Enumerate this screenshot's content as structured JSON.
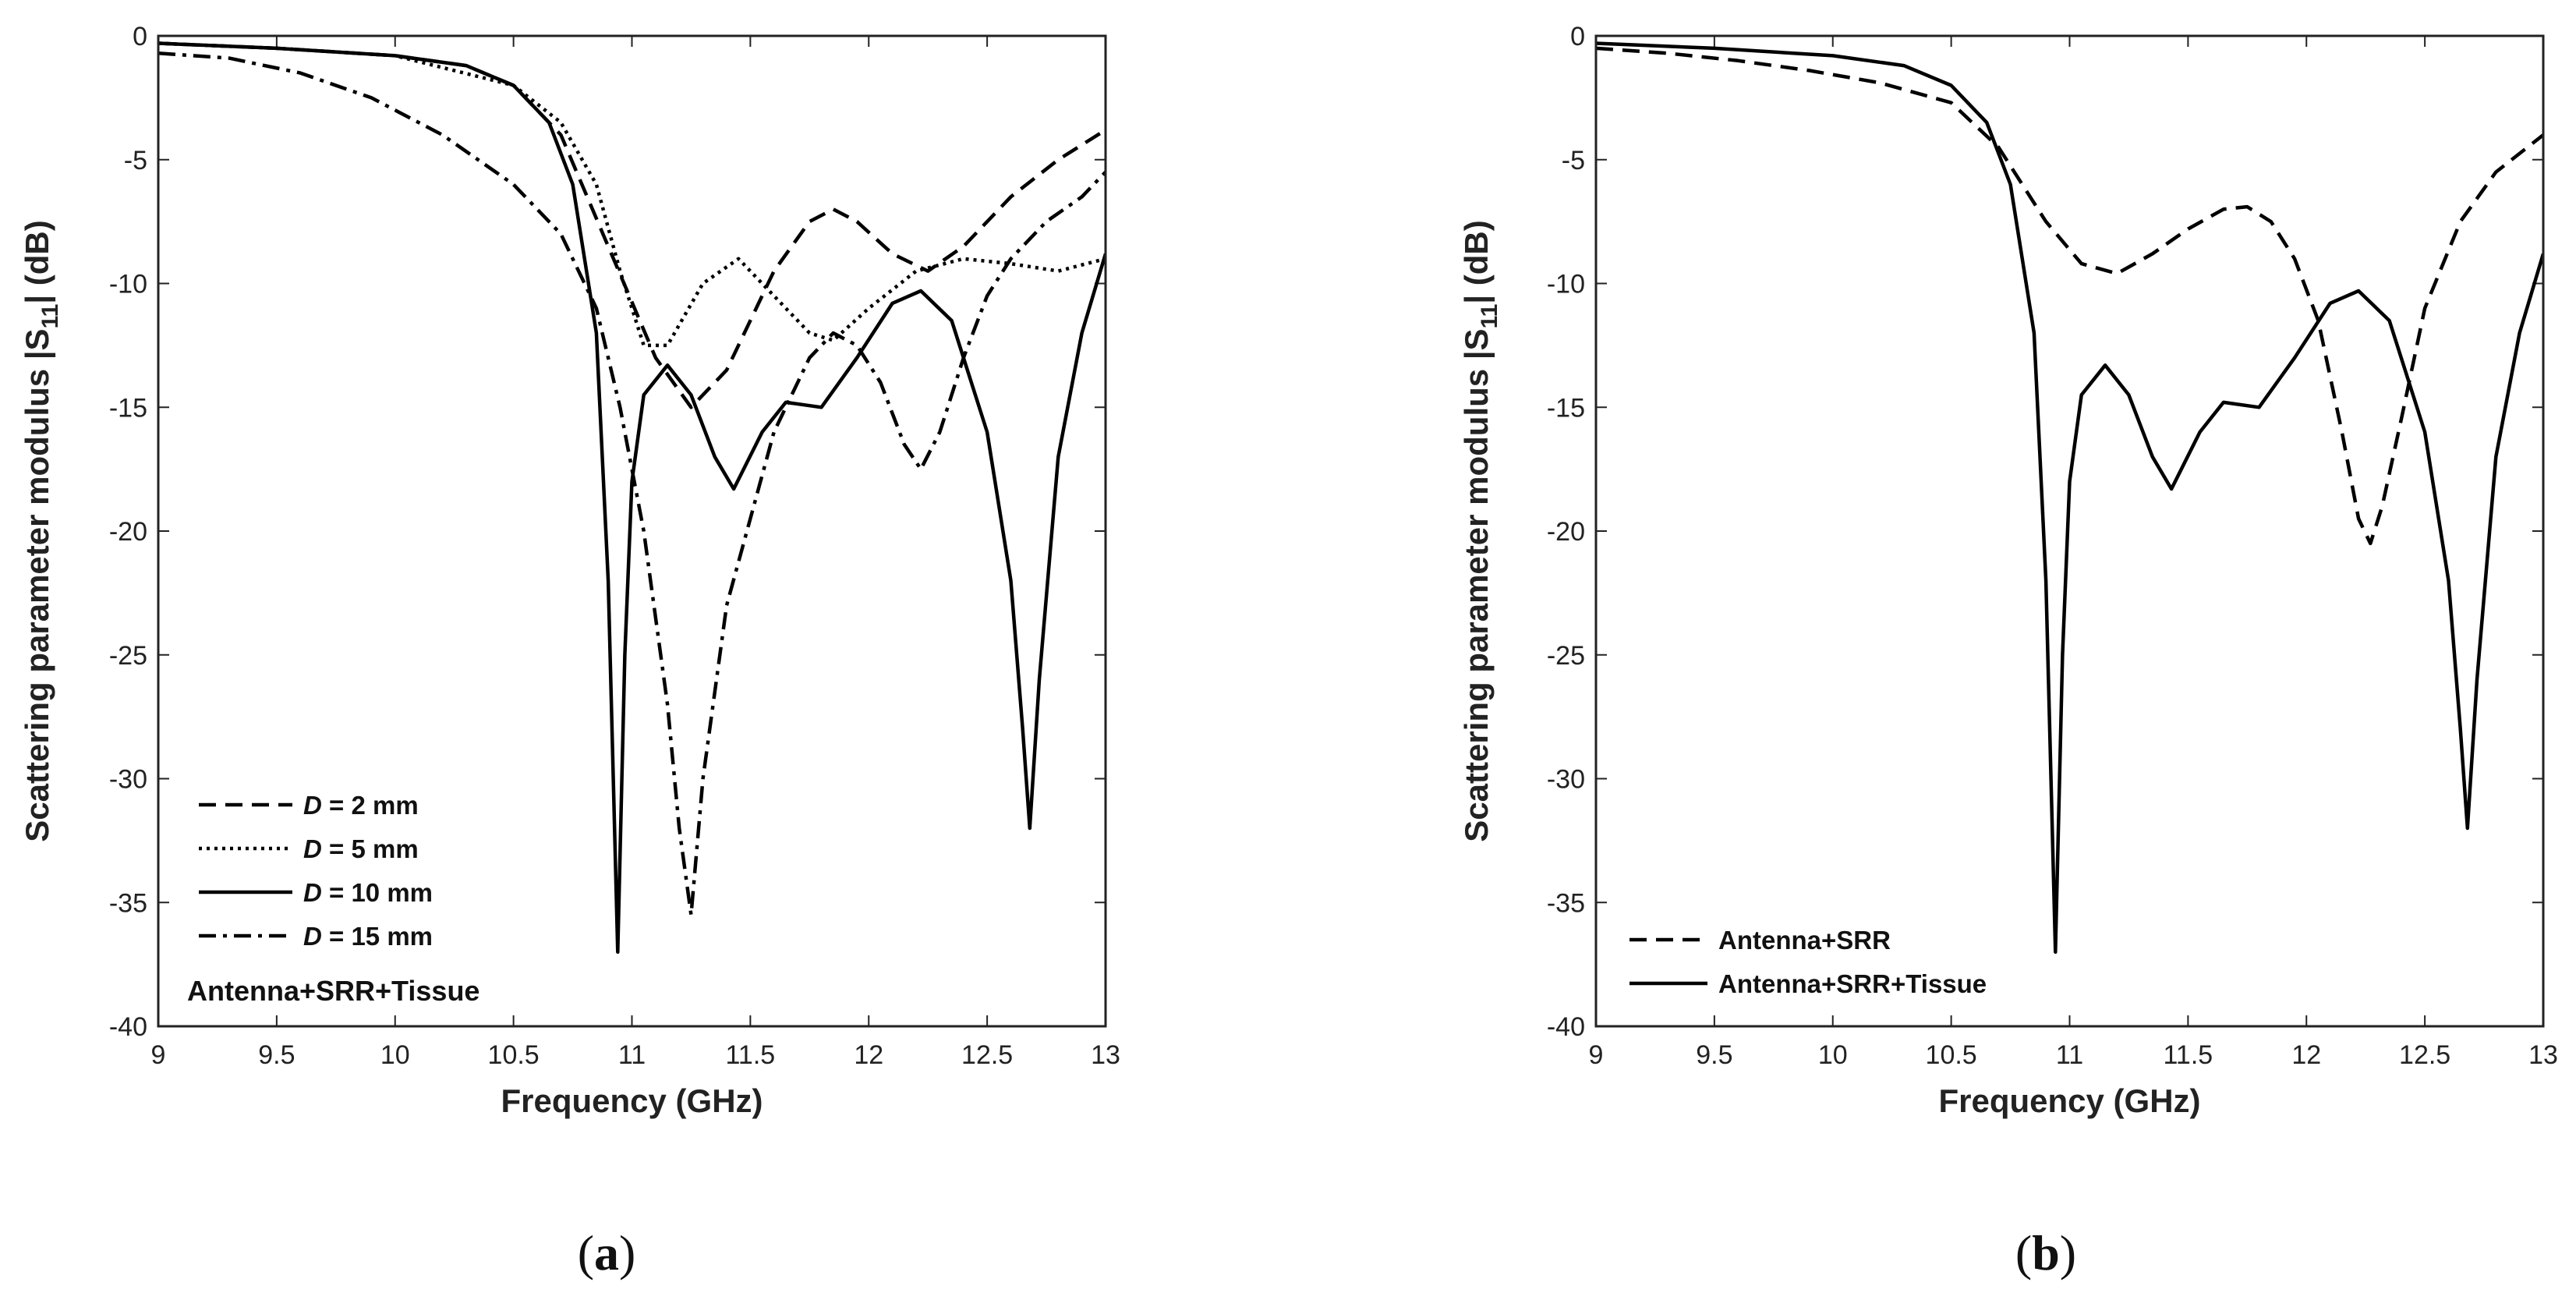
{
  "chart_data": [
    {
      "type": "line",
      "panel_label": "a",
      "xlabel": "Frequency (GHz)",
      "ylabel": {
        "prefix": "Scattering parameter modulus |S",
        "sub": "11",
        "suffix": "| (dB)"
      },
      "xlim": [
        9,
        13
      ],
      "ylim": [
        -40,
        0
      ],
      "xticks": [
        "9",
        "9.5",
        "10",
        "10.5",
        "11",
        "11.5",
        "12",
        "12.5",
        "13"
      ],
      "yticks": [
        "0",
        "-5",
        "-10",
        "-15",
        "-20",
        "-25",
        "-30",
        "-35",
        "-40"
      ],
      "annotation": "Antenna+SRR+Tissue",
      "series": [
        {
          "name": "D = 2 mm",
          "label_var": "D",
          "label_rest": " = 2 mm",
          "style": "dashed",
          "x": [
            9.0,
            9.5,
            10.0,
            10.3,
            10.5,
            10.7,
            10.9,
            11.1,
            11.25,
            11.4,
            11.6,
            11.75,
            11.85,
            11.95,
            12.1,
            12.25,
            12.4,
            12.6,
            12.8,
            13.0
          ],
          "y": [
            -0.3,
            -0.5,
            -0.8,
            -1.2,
            -2.0,
            -4.0,
            -8.5,
            -13.0,
            -15.0,
            -13.5,
            -9.5,
            -7.5,
            -7.0,
            -7.5,
            -8.8,
            -9.5,
            -8.5,
            -6.5,
            -5.0,
            -3.8
          ]
        },
        {
          "name": "D = 5 mm",
          "label_var": "D",
          "label_rest": " = 5 mm",
          "style": "dotted",
          "x": [
            9.0,
            9.5,
            10.0,
            10.5,
            10.7,
            10.85,
            10.95,
            11.05,
            11.15,
            11.3,
            11.45,
            11.6,
            11.75,
            11.85,
            12.0,
            12.2,
            12.4,
            12.6,
            12.8,
            13.0
          ],
          "y": [
            -0.3,
            -0.5,
            -0.8,
            -2.0,
            -3.5,
            -6.0,
            -9.5,
            -12.5,
            -12.5,
            -10.0,
            -9.0,
            -10.5,
            -12.0,
            -12.3,
            -11.0,
            -9.5,
            -9.0,
            -9.2,
            -9.5,
            -9.0
          ]
        },
        {
          "name": "D = 10 mm",
          "label_var": "D",
          "label_rest": " = 10 mm",
          "style": "solid",
          "x": [
            9.0,
            9.5,
            10.0,
            10.3,
            10.5,
            10.65,
            10.75,
            10.85,
            10.9,
            10.94,
            10.97,
            11.0,
            11.05,
            11.15,
            11.25,
            11.35,
            11.43,
            11.55,
            11.65,
            11.8,
            11.95,
            12.1,
            12.22,
            12.35,
            12.5,
            12.6,
            12.65,
            12.68,
            12.72,
            12.8,
            12.9,
            13.0
          ],
          "y": [
            -0.3,
            -0.5,
            -0.8,
            -1.2,
            -2.0,
            -3.5,
            -6.0,
            -12.0,
            -22.0,
            -37.0,
            -25.0,
            -18.0,
            -14.5,
            -13.3,
            -14.5,
            -17.0,
            -18.3,
            -16.0,
            -14.8,
            -15.0,
            -13.0,
            -10.8,
            -10.3,
            -11.5,
            -16.0,
            -22.0,
            -28.0,
            -32.0,
            -26.0,
            -17.0,
            -12.0,
            -8.8
          ]
        },
        {
          "name": "D = 15 mm",
          "label_var": "D",
          "label_rest": " = 15 mm",
          "style": "dashdot",
          "x": [
            9.0,
            9.3,
            9.6,
            9.9,
            10.2,
            10.5,
            10.7,
            10.85,
            10.95,
            11.05,
            11.15,
            11.2,
            11.25,
            11.3,
            11.4,
            11.6,
            11.75,
            11.85,
            11.95,
            12.05,
            12.15,
            12.22,
            12.3,
            12.4,
            12.5,
            12.6,
            12.75,
            12.9,
            13.0
          ],
          "y": [
            -0.7,
            -0.9,
            -1.5,
            -2.5,
            -4.0,
            -6.0,
            -8.0,
            -11.0,
            -15.0,
            -20.0,
            -27.0,
            -32.0,
            -35.5,
            -30.0,
            -23.0,
            -16.0,
            -13.0,
            -12.0,
            -12.5,
            -14.0,
            -16.5,
            -17.5,
            -16.0,
            -13.0,
            -10.5,
            -9.0,
            -7.5,
            -6.5,
            -5.5
          ]
        }
      ]
    },
    {
      "type": "line",
      "panel_label": "b",
      "xlabel": "Frequency (GHz)",
      "ylabel": {
        "prefix": "Scattering parameter modulus |S",
        "sub": "11",
        "suffix": "| (dB)"
      },
      "xlim": [
        9,
        13
      ],
      "ylim": [
        -40,
        0
      ],
      "xticks": [
        "9",
        "9.5",
        "10",
        "10.5",
        "11",
        "11.5",
        "12",
        "12.5",
        "13"
      ],
      "yticks": [
        "0",
        "-5",
        "-10",
        "-15",
        "-20",
        "-25",
        "-30",
        "-35",
        "-40"
      ],
      "series": [
        {
          "name": "Antenna+SRR",
          "label_var": "",
          "label_rest": "Antenna+SRR",
          "style": "dashed",
          "x": [
            9.0,
            9.3,
            9.6,
            9.9,
            10.2,
            10.5,
            10.7,
            10.9,
            11.05,
            11.2,
            11.35,
            11.5,
            11.65,
            11.75,
            11.85,
            11.95,
            12.05,
            12.15,
            12.22,
            12.27,
            12.32,
            12.4,
            12.5,
            12.65,
            12.8,
            13.0
          ],
          "y": [
            -0.5,
            -0.7,
            -1.0,
            -1.4,
            -1.9,
            -2.7,
            -4.5,
            -7.5,
            -9.2,
            -9.6,
            -8.8,
            -7.8,
            -7.0,
            -6.9,
            -7.5,
            -9.0,
            -11.5,
            -16.0,
            -19.5,
            -20.5,
            -19.0,
            -15.5,
            -11.0,
            -7.5,
            -5.5,
            -4.0
          ]
        },
        {
          "name": "Antenna+SRR+Tissue",
          "label_var": "",
          "label_rest": "Antenna+SRR+Tissue",
          "style": "solid",
          "x": [
            9.0,
            9.5,
            10.0,
            10.3,
            10.5,
            10.65,
            10.75,
            10.85,
            10.9,
            10.94,
            10.97,
            11.0,
            11.05,
            11.15,
            11.25,
            11.35,
            11.43,
            11.55,
            11.65,
            11.8,
            11.95,
            12.1,
            12.22,
            12.35,
            12.5,
            12.6,
            12.65,
            12.68,
            12.72,
            12.8,
            12.9,
            13.0
          ],
          "y": [
            -0.3,
            -0.5,
            -0.8,
            -1.2,
            -2.0,
            -3.5,
            -6.0,
            -12.0,
            -22.0,
            -37.0,
            -25.0,
            -18.0,
            -14.5,
            -13.3,
            -14.5,
            -17.0,
            -18.3,
            -16.0,
            -14.8,
            -15.0,
            -13.0,
            -10.8,
            -10.3,
            -11.5,
            -16.0,
            -22.0,
            -28.0,
            -32.0,
            -26.0,
            -17.0,
            -12.0,
            -8.8
          ]
        }
      ]
    }
  ]
}
